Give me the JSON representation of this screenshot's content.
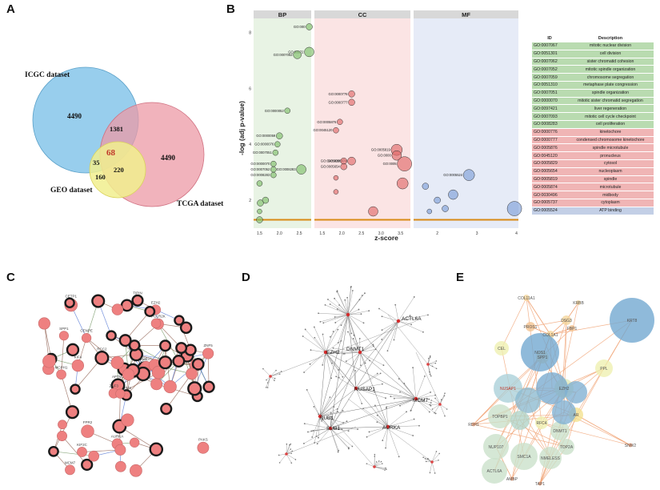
{
  "panels": {
    "a": "A",
    "b": "B",
    "c": "C",
    "d": "D",
    "e": "E"
  },
  "venn": {
    "icgc_label": "ICGC dataset",
    "tcga_label": "TCGA dataset",
    "geo_label": "GEO dataset",
    "icgc_only": "4490",
    "tcga_only": "4490",
    "icgc_tcga": "1381",
    "center": "68",
    "icgc_geo": "35",
    "geo_only": "160",
    "tcga_geo": "220",
    "colors": {
      "icgc": "#86c5ea",
      "tcga": "#ec9aa5",
      "geo": "#f1ee8e",
      "center": "#c0392b"
    }
  },
  "chart_data": {
    "type": "scatter",
    "title": "",
    "xlabel": "z-score",
    "ylabel": "-log (adj p-value)",
    "facets": [
      "BP",
      "CC",
      "MF"
    ],
    "facet_xticks": [
      [
        "1.5",
        "2.0",
        "2.5"
      ],
      [
        "1.5",
        "2.0",
        "2.5",
        "3.0",
        "3.5"
      ],
      [
        "2",
        "3",
        "4"
      ]
    ],
    "ylim": [
      1,
      8.5
    ],
    "yticks": [
      "2",
      "4",
      "6",
      "8"
    ],
    "threshold_y": 1.3,
    "colors": {
      "BP": "#7fbf6a",
      "CC": "#e06a6a",
      "MF": "#7f9fd9",
      "threshold": "#d88a14"
    },
    "points": {
      "BP": [
        {
          "x": 2.75,
          "y": 8.2,
          "r": 4,
          "label": "GO:000"
        },
        {
          "x": 2.75,
          "y": 7.3,
          "r": 6,
          "label": "GO:00072"
        },
        {
          "x": 2.45,
          "y": 7.2,
          "r": 5,
          "label": "GO:0007062"
        },
        {
          "x": 2.2,
          "y": 5.2,
          "r": 3.5,
          "label": "GO:0000052"
        },
        {
          "x": 2.0,
          "y": 4.3,
          "r": 4,
          "label": "GO:0000059"
        },
        {
          "x": 1.95,
          "y": 4.0,
          "r": 3.5,
          "label": "GO:0000076"
        },
        {
          "x": 1.9,
          "y": 3.7,
          "r": 3.5,
          "label": "GO:0007051"
        },
        {
          "x": 1.85,
          "y": 3.3,
          "r": 3.5,
          "label": "GO:0000070"
        },
        {
          "x": 1.85,
          "y": 3.1,
          "r": 3.5,
          "label": "GO:0007052"
        },
        {
          "x": 1.85,
          "y": 2.9,
          "r": 3.5,
          "label": "GO:0008283"
        },
        {
          "x": 2.55,
          "y": 3.1,
          "r": 6,
          "label": "GO:0008283"
        },
        {
          "x": 1.5,
          "y": 2.6,
          "r": 3.5,
          "label": ""
        },
        {
          "x": 1.65,
          "y": 2.0,
          "r": 4,
          "label": ""
        },
        {
          "x": 1.52,
          "y": 1.9,
          "r": 4,
          "label": ""
        },
        {
          "x": 1.5,
          "y": 1.6,
          "r": 3,
          "label": ""
        },
        {
          "x": 1.5,
          "y": 1.3,
          "r": 4,
          "label": ""
        }
      ],
      "CC": [
        {
          "x": 2.25,
          "y": 5.8,
          "r": 4,
          "label": "GO:0000776"
        },
        {
          "x": 2.25,
          "y": 5.5,
          "r": 4,
          "label": "GO:0000777"
        },
        {
          "x": 1.95,
          "y": 4.8,
          "r": 3.5,
          "label": "GO:0005876"
        },
        {
          "x": 1.85,
          "y": 4.5,
          "r": 3.5,
          "label": "GO:0045120"
        },
        {
          "x": 2.25,
          "y": 3.4,
          "r": 5,
          "label": "GO:0005874"
        },
        {
          "x": 2.05,
          "y": 3.4,
          "r": 4,
          "label": "GO:0005829"
        },
        {
          "x": 2.05,
          "y": 3.2,
          "r": 4,
          "label": "GO:0005654"
        },
        {
          "x": 3.4,
          "y": 3.8,
          "r": 7,
          "label": "GO:0005819"
        },
        {
          "x": 3.4,
          "y": 3.6,
          "r": 6,
          "label": "GO:0000"
        },
        {
          "x": 3.6,
          "y": 3.3,
          "r": 9,
          "label": "GO:0005"
        },
        {
          "x": 1.85,
          "y": 2.8,
          "r": 3,
          "label": ""
        },
        {
          "x": 1.85,
          "y": 2.3,
          "r": 3,
          "label": ""
        },
        {
          "x": 3.55,
          "y": 2.6,
          "r": 7,
          "label": ""
        },
        {
          "x": 2.8,
          "y": 1.6,
          "r": 6,
          "label": ""
        }
      ],
      "MF": [
        {
          "x": 2.8,
          "y": 2.9,
          "r": 7,
          "label": "GO:0005524"
        },
        {
          "x": 2.0,
          "y": 2.0,
          "r": 4,
          "label": ""
        },
        {
          "x": 2.2,
          "y": 1.7,
          "r": 4,
          "label": ""
        },
        {
          "x": 2.4,
          "y": 2.2,
          "r": 6,
          "label": ""
        },
        {
          "x": 1.8,
          "y": 1.6,
          "r": 3,
          "label": ""
        },
        {
          "x": 1.7,
          "y": 2.5,
          "r": 4,
          "label": ""
        },
        {
          "x": 3.95,
          "y": 1.7,
          "r": 9,
          "label": ""
        }
      ]
    }
  },
  "go_table": {
    "headers": [
      "ID",
      "Description"
    ],
    "rows": [
      {
        "id": "GO:0007067",
        "desc": "mitotic nuclear division",
        "cat": "bp"
      },
      {
        "id": "GO:0051301",
        "desc": "cell division",
        "cat": "bp"
      },
      {
        "id": "GO:0007062",
        "desc": "sister chromatid cohesion",
        "cat": "bp"
      },
      {
        "id": "GO:0007052",
        "desc": "mitotic spindle organization",
        "cat": "bp"
      },
      {
        "id": "GO:0007059",
        "desc": "chromosome segregation",
        "cat": "bp"
      },
      {
        "id": "GO:0051310",
        "desc": "metaphase plate congression",
        "cat": "bp"
      },
      {
        "id": "GO:0007051",
        "desc": "spindle organization",
        "cat": "bp"
      },
      {
        "id": "GO:0000070",
        "desc": "mitotic sister chromatid segregation",
        "cat": "bp"
      },
      {
        "id": "GO:0097421",
        "desc": "liver regeneration",
        "cat": "bp"
      },
      {
        "id": "GO:0007093",
        "desc": "mitotic cell cycle checkpoint",
        "cat": "bp"
      },
      {
        "id": "GO:0008283",
        "desc": "cell proliferation",
        "cat": "bp"
      },
      {
        "id": "GO:0000776",
        "desc": "kinetochore",
        "cat": "cc"
      },
      {
        "id": "GO:0000777",
        "desc": "condensed chromosome kinetochore",
        "cat": "cc"
      },
      {
        "id": "GO:0005876",
        "desc": "spindle microtubule",
        "cat": "cc"
      },
      {
        "id": "GO:0045120",
        "desc": "pronucleus",
        "cat": "cc"
      },
      {
        "id": "GO:0005829",
        "desc": "cytosol",
        "cat": "cc"
      },
      {
        "id": "GO:0005654",
        "desc": "nucleoplasm",
        "cat": "cc"
      },
      {
        "id": "GO:0005819",
        "desc": "spindle",
        "cat": "cc"
      },
      {
        "id": "GO:0005874",
        "desc": "microtubule",
        "cat": "cc"
      },
      {
        "id": "GO:0030496",
        "desc": "midbody",
        "cat": "cc"
      },
      {
        "id": "GO:0005737",
        "desc": "cytoplasm",
        "cat": "cc"
      },
      {
        "id": "GO:0005524",
        "desc": "ATP binding",
        "cat": "mf"
      }
    ]
  },
  "network_c": {
    "labels": [
      "TYMS",
      "APTM3",
      "EED",
      "EZH2",
      "POLR2K",
      "CETP1",
      "MCPH1",
      "ZNF3",
      "MCM7",
      "TIPIN",
      "RCC2",
      "KIF2C",
      "TOP2A",
      "SPP1",
      "NOD2",
      "ZNF5",
      "AURKA",
      "CENPE",
      "FPR2",
      "PAKS",
      "TIPIN",
      "KIF4"
    ]
  },
  "network_d": {
    "hubs": [
      "ACTL6A",
      "EZH2",
      "DNMT1",
      "NUSAP1",
      "MCM7",
      "SUB1",
      "AURKA",
      "BUB1"
    ]
  },
  "network_e": {
    "labels": [
      "COL11A1",
      "KRBB",
      "DSG3",
      "KRT8",
      "PROS1",
      "COL1A1",
      "FBP1",
      "CEL",
      "SPP1",
      "PPL",
      "NOS1",
      "EZH2",
      "AR",
      "NUSAP1",
      "TOPBP1",
      "RFC4",
      "DNMT1",
      "NUP107",
      "SMC1A",
      "NMELESS",
      "ACTL6A",
      "TOP2A",
      "RDH1",
      "SNW2",
      "AMBP",
      "TAP1"
    ]
  }
}
